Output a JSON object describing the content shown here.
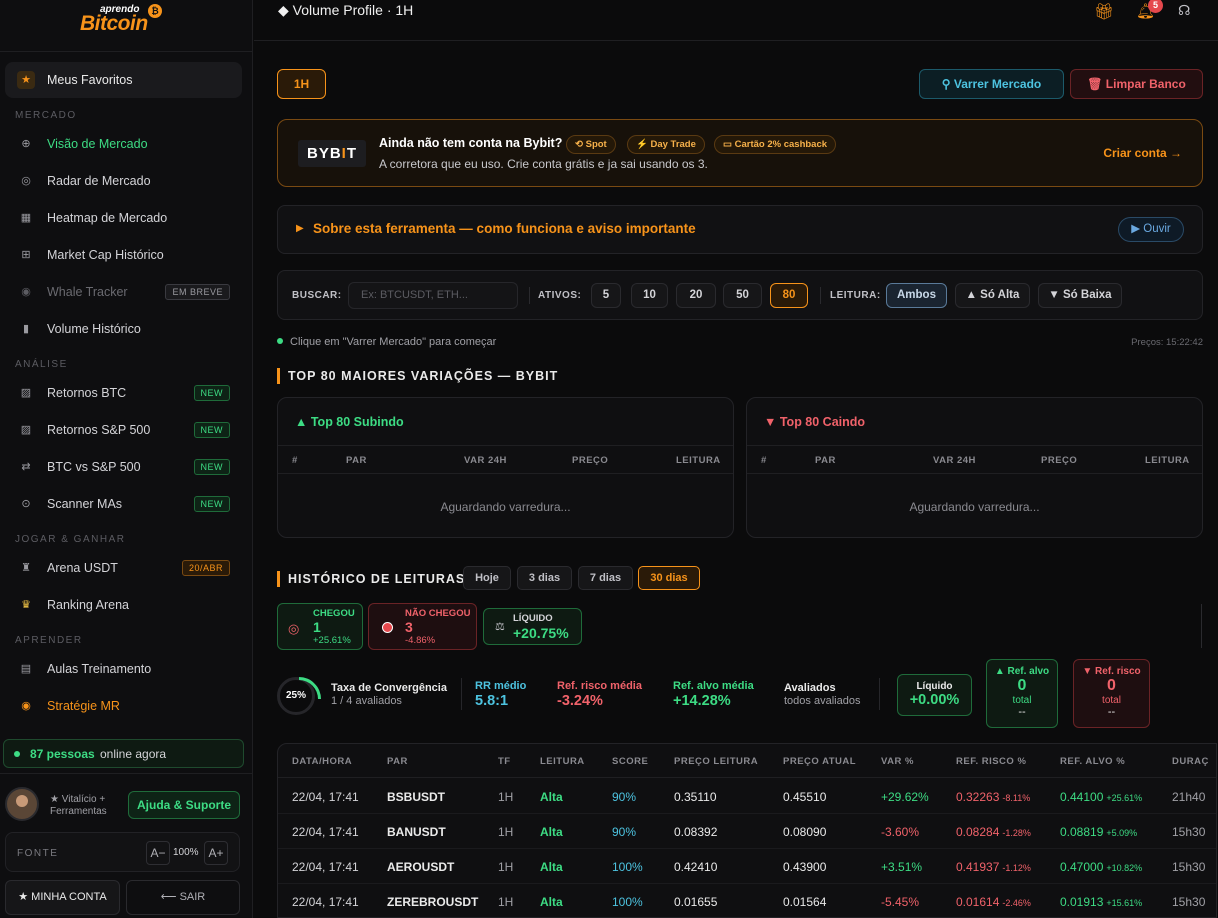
{
  "sidebar": {
    "logo": {
      "top": "aprendo",
      "main": "Bitcoin"
    },
    "favorites": "Meus Favoritos",
    "sections": {
      "mercado": "MERCADO",
      "analise": "ANÁLISE",
      "jogar": "JOGAR & GANHAR",
      "aprender": "APRENDER"
    },
    "items": [
      {
        "label": "Visão de Mercado",
        "icon": "globe-icon",
        "active": true
      },
      {
        "label": "Radar de Mercado",
        "icon": "radar-icon"
      },
      {
        "label": "Heatmap de Mercado",
        "icon": "grid-icon"
      },
      {
        "label": "Market Cap Histórico",
        "icon": "table-icon"
      },
      {
        "label": "Whale Tracker",
        "icon": "whale-icon",
        "badge": "EM BREVE"
      },
      {
        "label": "Volume Histórico",
        "icon": "bar-icon"
      },
      {
        "label": "Retornos BTC",
        "icon": "chart-icon",
        "badge": "NEW"
      },
      {
        "label": "Retornos S&P 500",
        "icon": "chart-icon",
        "badge": "NEW"
      },
      {
        "label": "BTC vs S&P 500",
        "icon": "swap-icon",
        "badge": "NEW"
      },
      {
        "label": "Scanner MAs",
        "icon": "scan-icon",
        "badge": "NEW"
      },
      {
        "label": "Arena USDT",
        "icon": "arena-icon",
        "badge": "20/ABR"
      },
      {
        "label": "Ranking Arena",
        "icon": "trophy-icon"
      },
      {
        "label": "Aulas Treinamento",
        "icon": "book-icon"
      },
      {
        "label": "Stratégie MR",
        "icon": "target-icon",
        "accent": true
      }
    ],
    "online": {
      "count": "87 pessoas",
      "text": "online agora"
    },
    "user": {
      "plan": "★ Vitalício + Ferramentas"
    },
    "help": "Ajuda & Suporte",
    "fonte": {
      "label": "FONTE",
      "minus": "A−",
      "value": "100%",
      "plus": "A+"
    },
    "account": "★ MINHA CONTA",
    "logout": "⟵ SAIR"
  },
  "header": {
    "title": "◆ Volume Profile · 1H",
    "notifications": "5"
  },
  "toolbar": {
    "timeframe": "1H",
    "scan": "Varrer Mercado",
    "clear": "Limpar Banco"
  },
  "promo": {
    "brand": "BYBIT",
    "question": "Ainda não tem conta na Bybit?",
    "chips": [
      "Spot",
      "Day Trade",
      "Cartão 2% cashback"
    ],
    "desc": "A corretora que eu uso. Crie conta grátis e ja sai usando os 3.",
    "cta": "Criar conta →"
  },
  "about": {
    "title": "Sobre esta ferramenta — como funciona e aviso importante",
    "listen": "▶ Ouvir"
  },
  "filters": {
    "search_label": "BUSCAR:",
    "search_placeholder": "Ex: BTCUSDT, ETH...",
    "assets_label": "ATIVOS:",
    "assets": [
      "5",
      "10",
      "20",
      "50",
      "80"
    ],
    "assets_selected": "80",
    "reading_label": "LEITURA:",
    "reading": [
      "Ambos",
      "▲ Só Alta",
      "▼ Só Baixa"
    ],
    "reading_selected": "Ambos"
  },
  "hint": "Clique em \"Varrer Mercado\" para começar",
  "prices_time": "Preços: 15:22:42",
  "top": {
    "title": "TOP 80 MAIORES VARIAÇÕES — BYBIT",
    "up": {
      "title": "▲ Top 80 Subindo",
      "waiting": "Aguardando varredura..."
    },
    "down": {
      "title": "▼ Top 80 Caindo",
      "waiting": "Aguardando varredura..."
    },
    "columns": [
      "#",
      "PAR",
      "VAR 24H",
      "PREÇO",
      "LEITURA"
    ]
  },
  "history": {
    "title": "HISTÓRICO DE LEITURAS",
    "periods": [
      "Hoje",
      "3 dias",
      "7 dias",
      "30 dias"
    ],
    "period_selected": "30 dias",
    "stats": {
      "hit": {
        "label": "CHEGOU",
        "value": "1",
        "pct": "+25.61%"
      },
      "miss": {
        "label": "NÃO CHEGOU",
        "value": "3",
        "pct": "-4.86%"
      },
      "net": {
        "label": "LÍQUIDO",
        "value": "+20.75%"
      }
    },
    "metrics": {
      "ring": "25%",
      "conv_label": "Taxa de Convergência",
      "conv_sub": "1 / 4 avaliados",
      "rr_label": "RR médio",
      "rr_value": "5.8:1",
      "risk_label": "Ref. risco média",
      "risk_value": "-3.24%",
      "target_label": "Ref. alvo média",
      "target_value": "+14.28%",
      "eval_label": "Avaliados",
      "eval_sub": "todos avaliados",
      "liq_label": "Líquido",
      "liq_value": "+0.00%",
      "ref_alvo": {
        "label": "▲ Ref. alvo",
        "value": "0",
        "sub": "total",
        "dash": "--"
      },
      "ref_risco": {
        "label": "▼ Ref. risco",
        "value": "0",
        "sub": "total",
        "dash": "--"
      }
    },
    "columns": [
      "DATA/HORA",
      "PAR",
      "TF",
      "LEITURA",
      "SCORE",
      "PREÇO LEITURA",
      "PREÇO ATUAL",
      "VAR %",
      "REF. RISCO %",
      "REF. ALVO %",
      "DURAÇ"
    ],
    "rows": [
      {
        "date": "22/04, 17:41",
        "pair": "BSBUSDT",
        "tf": "1H",
        "reading": "Alta",
        "score": "90%",
        "price_read": "0.35110",
        "price_now": "0.45510",
        "var": "+29.62%",
        "var_pos": true,
        "risk": "0.32263",
        "risk_pct": "-8.11%",
        "target": "0.44100",
        "target_pct": "+25.61%",
        "dur": "21h40"
      },
      {
        "date": "22/04, 17:41",
        "pair": "BANUSDT",
        "tf": "1H",
        "reading": "Alta",
        "score": "90%",
        "price_read": "0.08392",
        "price_now": "0.08090",
        "var": "-3.60%",
        "var_pos": false,
        "risk": "0.08284",
        "risk_pct": "-1.28%",
        "target": "0.08819",
        "target_pct": "+5.09%",
        "dur": "15h30"
      },
      {
        "date": "22/04, 17:41",
        "pair": "AEROUSDT",
        "tf": "1H",
        "reading": "Alta",
        "score": "100%",
        "price_read": "0.42410",
        "price_now": "0.43900",
        "var": "+3.51%",
        "var_pos": true,
        "risk": "0.41937",
        "risk_pct": "-1.12%",
        "target": "0.47000",
        "target_pct": "+10.82%",
        "dur": "15h30"
      },
      {
        "date": "22/04, 17:41",
        "pair": "ZEREBROUSDT",
        "tf": "1H",
        "reading": "Alta",
        "score": "100%",
        "price_read": "0.01655",
        "price_now": "0.01564",
        "var": "-5.45%",
        "var_pos": false,
        "risk": "0.01614",
        "risk_pct": "-2.46%",
        "target": "0.01913",
        "target_pct": "+15.61%",
        "dur": "15h30"
      }
    ]
  },
  "colors": {
    "accent": "#f7931a",
    "green": "#3ddc84",
    "red": "#f0626a",
    "blue": "#4dc3e0"
  }
}
